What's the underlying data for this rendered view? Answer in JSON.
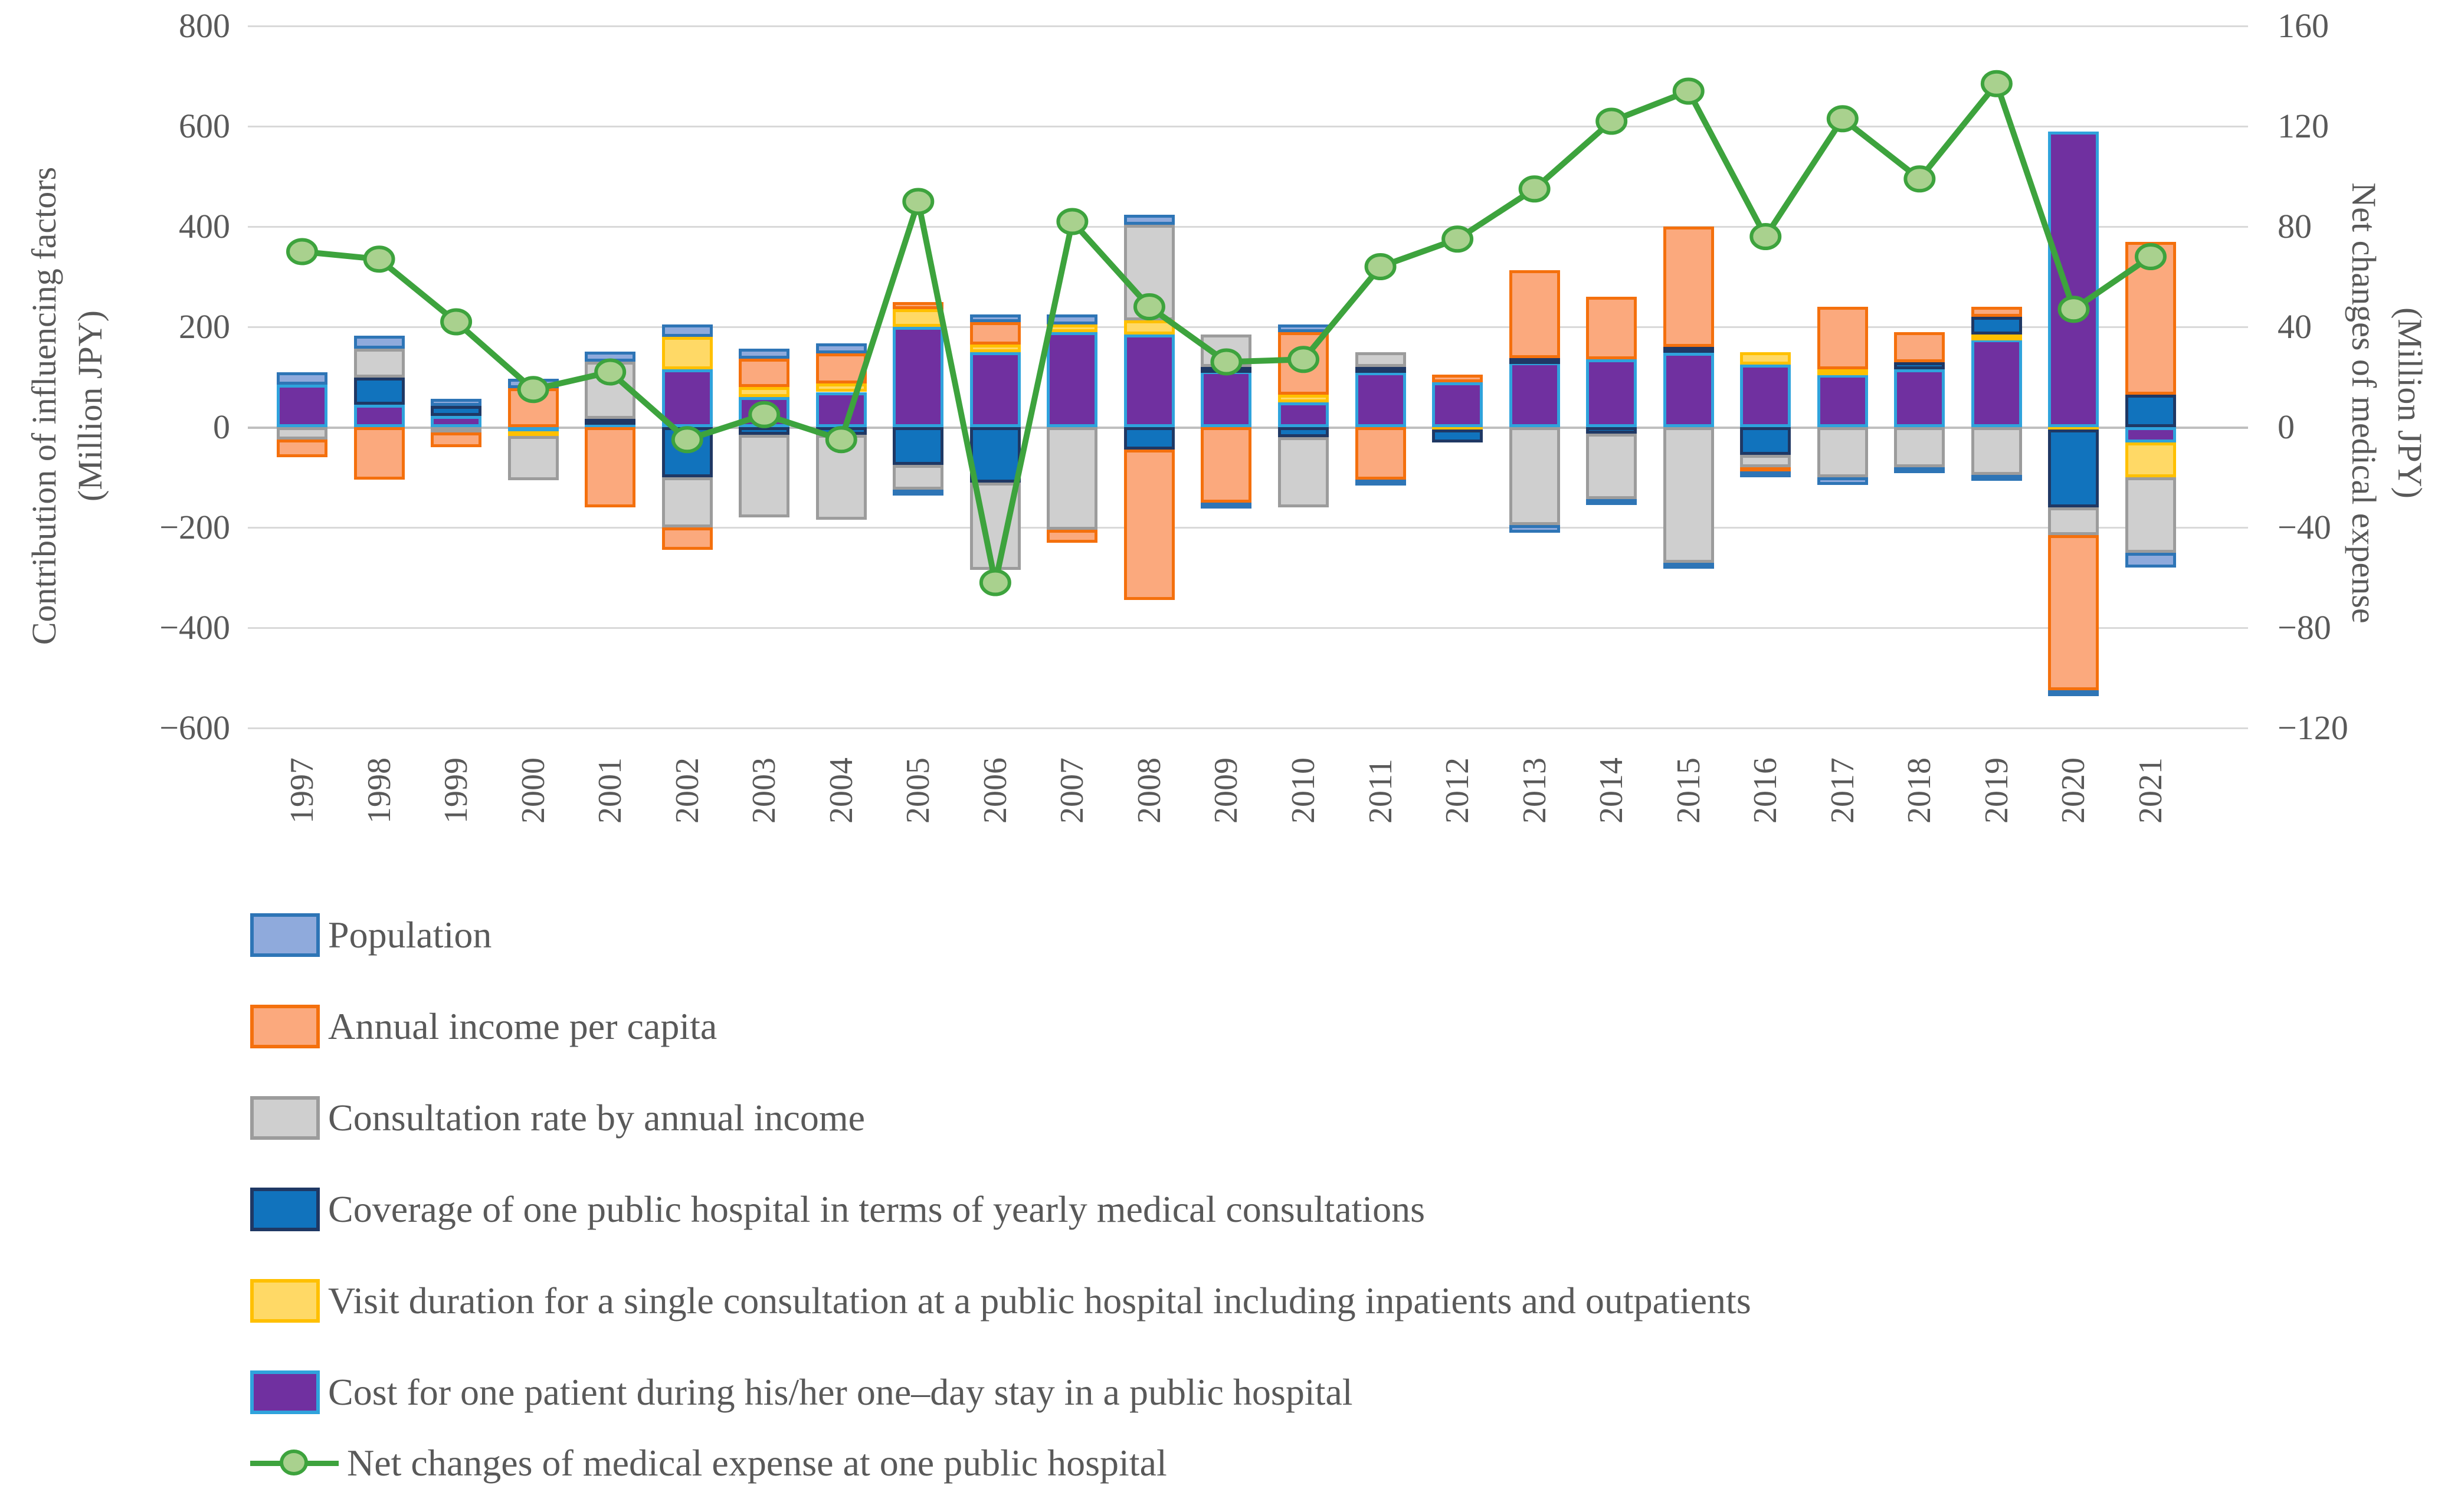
{
  "left_axis": {
    "title_lines": [
      "Contribution of influencing factors",
      "(Million JPY)"
    ],
    "ticks": [
      800,
      600,
      400,
      200,
      0,
      -200,
      -400,
      -600
    ],
    "range": [
      -600,
      800
    ]
  },
  "right_axis": {
    "title_lines": [
      "Net changes of medical expense",
      "(Million JPY)"
    ],
    "ticks": [
      160,
      120,
      80,
      40,
      0,
      -40,
      -80,
      -120
    ],
    "range": [
      -120,
      160
    ]
  },
  "chart_data": {
    "type": "bar",
    "subtype": "stacked-bar-with-line",
    "grid": true,
    "legend_position": "bottom-left",
    "categories": [
      1997,
      1998,
      1999,
      2000,
      2001,
      2002,
      2003,
      2004,
      2005,
      2006,
      2007,
      2008,
      2009,
      2010,
      2011,
      2012,
      2013,
      2014,
      2015,
      2016,
      2017,
      2018,
      2019,
      2020,
      2021
    ],
    "left_ylim": [
      -600,
      800
    ],
    "right_ylim": [
      -120,
      160
    ],
    "series": [
      {
        "name": "Population",
        "fill": "#8FAADC",
        "border": "#2E75B6",
        "values": [
          25,
          25,
          15,
          18,
          20,
          25,
          20,
          20,
          -10,
          15,
          20,
          20,
          -10,
          15,
          -12,
          0,
          -15,
          -12,
          -10,
          -7,
          -15,
          -12,
          -10,
          -10,
          -30
        ]
      },
      {
        "name": "Annual income per capita",
        "fill": "#FBA97D",
        "border": "#F4700D",
        "values": [
          -35,
          -105,
          -30,
          78,
          -160,
          -45,
          57,
          60,
          15,
          45,
          -25,
          -300,
          -150,
          125,
          -105,
          15,
          175,
          125,
          240,
          -8,
          125,
          60,
          20,
          -310,
          305
        ]
      },
      {
        "name": "Consultation rate by annual income",
        "fill": "#CFCFCF",
        "border": "#9C9C9C",
        "values": [
          -25,
          58,
          -10,
          -88,
          115,
          -100,
          -165,
          -170,
          -50,
          -175,
          -205,
          190,
          65,
          -140,
          30,
          0,
          -195,
          -130,
          -270,
          -25,
          -100,
          -80,
          -95,
          -55,
          -150
        ]
      },
      {
        "name": "Coverage of one public hospital in terms of yearly medical consultations",
        "fill": "#1173BD",
        "border": "#1F3864",
        "values": [
          0,
          54,
          20,
          0,
          8,
          -100,
          -15,
          -15,
          -75,
          -110,
          0,
          -45,
          8,
          -20,
          10,
          -25,
          8,
          -13,
          12,
          -55,
          0,
          15,
          35,
          -155,
          65
        ]
      },
      {
        "name": "Visit duration for a single consultation at a public hospital including inpatients and outpatients",
        "fill": "#FFD966",
        "border": "#FFC000",
        "values": [
          0,
          0,
          0,
          -10,
          0,
          65,
          20,
          17,
          35,
          15,
          15,
          28,
          0,
          15,
          0,
          -5,
          0,
          0,
          0,
          25,
          10,
          0,
          10,
          -5,
          -70
        ]
      },
      {
        "name": "Cost for one patient during his/her one–day stay in a public hospital",
        "fill": "#7030A0",
        "border": "#2FA3DC",
        "values": [
          85,
          45,
          22,
          -8,
          8,
          115,
          60,
          70,
          200,
          150,
          190,
          185,
          112,
          50,
          110,
          90,
          130,
          135,
          148,
          125,
          105,
          115,
          175,
          590,
          -30
        ]
      }
    ],
    "stack_order_bottom_up": [
      5,
      4,
      3,
      2,
      1,
      0
    ],
    "line": {
      "name": "Net changes of medical expense at one public hospital",
      "color": "#3DA33D",
      "marker_fill": "#A9D18E",
      "marker_border": "#3DA33D",
      "axis": "right",
      "values": [
        70,
        67,
        42,
        15,
        22,
        -5,
        5,
        -5,
        90,
        -62,
        82,
        48,
        26,
        27,
        64,
        75,
        95,
        122,
        134,
        76,
        123,
        99,
        137,
        47,
        68
      ]
    }
  }
}
